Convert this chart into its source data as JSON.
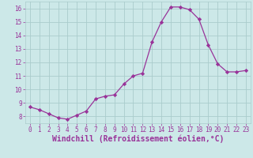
{
  "x": [
    0,
    1,
    2,
    3,
    4,
    5,
    6,
    7,
    8,
    9,
    10,
    11,
    12,
    13,
    14,
    15,
    16,
    17,
    18,
    19,
    20,
    21,
    22,
    23
  ],
  "y": [
    8.7,
    8.5,
    8.2,
    7.9,
    7.8,
    8.1,
    8.4,
    9.3,
    9.5,
    9.6,
    10.4,
    11.0,
    11.2,
    13.5,
    15.0,
    16.1,
    16.1,
    15.9,
    15.2,
    13.3,
    11.9,
    11.3,
    11.3,
    11.4
  ],
  "line_color": "#993399",
  "marker": "D",
  "marker_size": 2.2,
  "bg_color": "#cce8e8",
  "grid_color": "#aacccc",
  "xlabel": "Windchill (Refroidissement éolien,°C)",
  "xlabel_color": "#993399",
  "xlim": [
    -0.5,
    23.5
  ],
  "ylim": [
    7.5,
    16.5
  ],
  "yticks": [
    8,
    9,
    10,
    11,
    12,
    13,
    14,
    15,
    16
  ],
  "xticks": [
    0,
    1,
    2,
    3,
    4,
    5,
    6,
    7,
    8,
    9,
    10,
    11,
    12,
    13,
    14,
    15,
    16,
    17,
    18,
    19,
    20,
    21,
    22,
    23
  ],
  "tick_color": "#993399",
  "tick_fontsize": 5.5,
  "xlabel_fontsize": 7.0,
  "linewidth": 0.9
}
